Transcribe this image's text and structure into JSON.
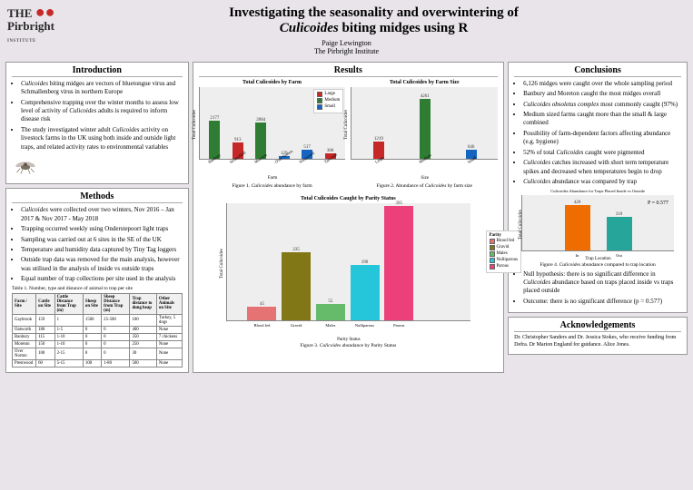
{
  "logo": {
    "main": "Pirbright",
    "sub": "INSTITUTE"
  },
  "title_line1": "Investigating the seasonality and overwintering of",
  "title_line2_italic": "Culicoides",
  "title_line2_rest": " biting midges using R",
  "author": "Paige Lewington",
  "affiliation": "The Pirbright Institute",
  "intro": {
    "heading": "Introduction",
    "bullets": [
      "<em>Culicoides</em> biting midges are vectors of bluetongue virus and Schmallenberg virus in northern Europe",
      "Comprehensive trapping over the winter months to assess low level of activity of <em>Culicoides</em> adults is required to inform disease risk",
      "The study investigated winter adult <em>Culicoides</em> activity on livestock farms in the UK using both inside and outside light traps, and related activity rates to environmental variables"
    ]
  },
  "methods": {
    "heading": "Methods",
    "bullets": [
      "<em>Culicoides</em> were collected over two winters, Nov 2016 – Jan 2017 & Nov 2017 - May 2018",
      "Trapping occurred weekly using Onderstepoort light traps",
      "Sampling was carried out at 6 sites in the SE of the UK",
      "Temperature and humidity data captured by Tiny Tag loggers",
      "Outside trap data was removed for the main analysis, however was utilised in the analysis of inside vs outside traps",
      "Equal number of trap collections per site used in the analysis"
    ],
    "table_caption": "Table 1. Number, type and distance of animal to trap per site",
    "table": {
      "columns": [
        "Farm / Site",
        "Cattle on Site",
        "Cattle Distance from Trap (m)",
        "Sheep on Site",
        "Sheep Distance from Trap (m)",
        "Trap distance to dung heap",
        "Other Animals on Site"
      ],
      "rows": [
        [
          "Gaybrook",
          "159",
          "1",
          "1500",
          "25-500",
          "100",
          "Turkey, 5 dogs"
        ],
        [
          "Oatworth",
          "180",
          "1-5",
          "0",
          "0",
          "400",
          "None"
        ],
        [
          "Banbury",
          "115",
          "1-10",
          "0",
          "0",
          "350",
          "7 chickens"
        ],
        [
          "Moreton",
          "150",
          "1-10",
          "0",
          "0",
          "250",
          "None"
        ],
        [
          "Over Norton",
          "100",
          "2-15",
          "0",
          "0",
          "30",
          "None"
        ],
        [
          "Prestwood",
          "60",
          "5-15",
          "100",
          "1-80",
          "500",
          "None"
        ]
      ]
    }
  },
  "results": {
    "heading": "Results",
    "chart1": {
      "title": "Total Culicoides by Farm",
      "caption": "Figure 1. <em>Culicoides</em> abundance by farm",
      "y_label": "Total Culicoides",
      "x_label": "Farm",
      "ymax": 4000,
      "bars": [
        {
          "label": "Banbury",
          "value": 2177,
          "color": "#2e7d32"
        },
        {
          "label": "Stokesfield",
          "value": 913,
          "color": "#c62828"
        },
        {
          "label": "Moreton",
          "value": 2084,
          "color": "#2e7d32"
        },
        {
          "label": "Over Norton",
          "value": 129,
          "color": "#1565c0"
        },
        {
          "label": "Prestwood",
          "value": 517,
          "color": "#1565c0"
        },
        {
          "label": "Tatworth",
          "value": 306,
          "color": "#c62828"
        }
      ],
      "legend": [
        {
          "label": "Large",
          "color": "#c62828"
        },
        {
          "label": "Medium",
          "color": "#2e7d32"
        },
        {
          "label": "Small",
          "color": "#1565c0"
        }
      ]
    },
    "chart2": {
      "title": "Total Culicoides by Farm Size",
      "caption": "Figure 2. Abundance of <em>Culicoides</em> by farm size",
      "y_label": "Total Culicoides",
      "x_label": "Size",
      "ymax": 5000,
      "bars": [
        {
          "label": "Large",
          "value": 1219,
          "color": "#c62828"
        },
        {
          "label": "Medium",
          "value": 4261,
          "color": "#2e7d32"
        },
        {
          "label": "Small",
          "value": 646,
          "color": "#1565c0"
        }
      ]
    },
    "chart3": {
      "title": "Total Culicoides Caught by Parity Status",
      "caption": "Figure 3. <em>Culicoides</em> abundance by Parity Status",
      "y_label": "Total Culicoides",
      "x_label": "Parity Status",
      "ymax": 400,
      "bars": [
        {
          "label": "Blood fed",
          "value": 45,
          "color": "#e57373"
        },
        {
          "label": "Gravid",
          "value": 235,
          "color": "#827717"
        },
        {
          "label": "Males",
          "value": 55,
          "color": "#66bb6a"
        },
        {
          "label": "Nulliparous",
          "value": 190,
          "color": "#26c6da"
        },
        {
          "label": "Parous",
          "value": 395,
          "color": "#ec407a"
        }
      ],
      "legend_title": "Parity",
      "legend": [
        {
          "label": "Blood fed",
          "color": "#e57373"
        },
        {
          "label": "Gravid",
          "color": "#827717"
        },
        {
          "label": "Males",
          "color": "#66bb6a"
        },
        {
          "label": "Nulliparous",
          "color": "#26c6da"
        },
        {
          "label": "Parous",
          "color": "#ec407a"
        }
      ]
    }
  },
  "conclusions": {
    "heading": "Conclusions",
    "bullets_a": [
      "6,126 midges were caught over the whole sampling period",
      "Banbury and Moreton caught the most midges overall",
      "<em>Culicoides obsoletus complex</em> most commonly caught (97%)",
      "Medium sized farms caught more than the small & large combined",
      "Possibility of farm-dependent factors affecting abundance (e.g. hygiene)",
      "52% of total <em>Culicoides</em> caught were pigmented",
      "<em>Culicoides</em> catches increased with short term temperature spikes and decreased when temperatures begin to drop",
      "<em>Culicoides</em> abundance was compared by trap"
    ],
    "chart4": {
      "title": "Culicoides Abundance for Traps Placed Inside vs Outside",
      "caption": "Figure 4. <em>Culicoides</em> abundance compared to trap location",
      "pvalue": "P = 0.577",
      "x_label": "Trap Location",
      "y_label": "Total Culicoides",
      "ymax": 500,
      "bars": [
        {
          "label": "In",
          "value": 420,
          "color": "#ef6c00"
        },
        {
          "label": "Out",
          "value": 310,
          "color": "#26a69a"
        }
      ]
    },
    "bullets_b": [
      "Null hypothesis: there is no significant difference in <em>Culicoides</em> abundance based on traps placed inside vs traps placed outside",
      "Outcome: there is no significant difference (p = 0.577)"
    ]
  },
  "ack": {
    "heading": "Acknowledgements",
    "text": "Dr. Christopher Sanders and Dr. Jessica Stokes, who receive funding from Defra. Dr Marion England for guidance. Alice Jones."
  }
}
